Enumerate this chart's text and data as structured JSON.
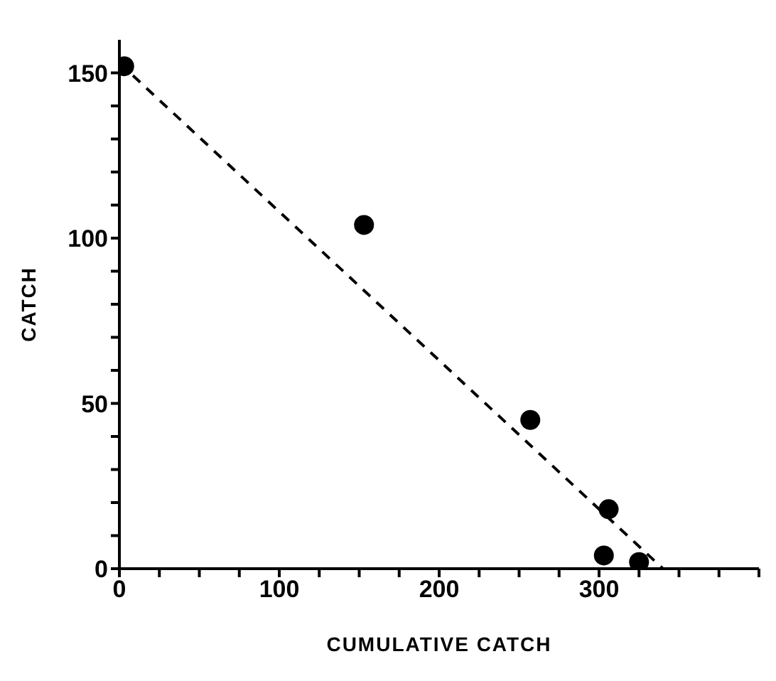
{
  "chart_data": {
    "type": "scatter",
    "xlabel": "CUMULATIVE CATCH",
    "ylabel": "CATCH",
    "xlim": [
      0,
      400
    ],
    "ylim": [
      0,
      160
    ],
    "xticks": [
      0,
      {
        "value": 25,
        "label": null
      },
      {
        "value": 50,
        "label": null
      },
      {
        "value": 75,
        "label": null
      },
      100,
      {
        "value": 125,
        "label": null
      },
      {
        "value": 150,
        "label": null
      },
      {
        "value": 175,
        "label": null
      },
      200,
      {
        "value": 225,
        "label": null
      },
      {
        "value": 250,
        "label": null
      },
      {
        "value": 275,
        "label": null
      },
      300,
      {
        "value": 325,
        "label": null
      },
      {
        "value": 350,
        "label": null
      },
      {
        "value": 375,
        "label": null
      },
      {
        "value": 400,
        "label": null
      }
    ],
    "yticks": [
      0,
      {
        "value": 10,
        "label": null
      },
      {
        "value": 20,
        "label": null
      },
      {
        "value": 30,
        "label": null
      },
      {
        "value": 40,
        "label": null
      },
      50,
      {
        "value": 60,
        "label": null
      },
      {
        "value": 70,
        "label": null
      },
      {
        "value": 80,
        "label": null
      },
      {
        "value": 90,
        "label": null
      },
      100,
      {
        "value": 110,
        "label": null
      },
      {
        "value": 120,
        "label": null
      },
      {
        "value": 130,
        "label": null
      },
      {
        "value": 140,
        "label": null
      },
      150
    ],
    "grid": false,
    "legend": false,
    "marker": "circle",
    "series": [
      {
        "color": "#000000",
        "x": [
          3,
          153,
          257,
          306,
          303,
          325
        ],
        "values": [
          152,
          104,
          45,
          18,
          4,
          2
        ]
      },
      {
        "type": "line",
        "color": "#000000",
        "line_style": "dashed",
        "marker": "none",
        "x": [
          0,
          340
        ],
        "values": [
          153,
          0
        ]
      }
    ]
  }
}
